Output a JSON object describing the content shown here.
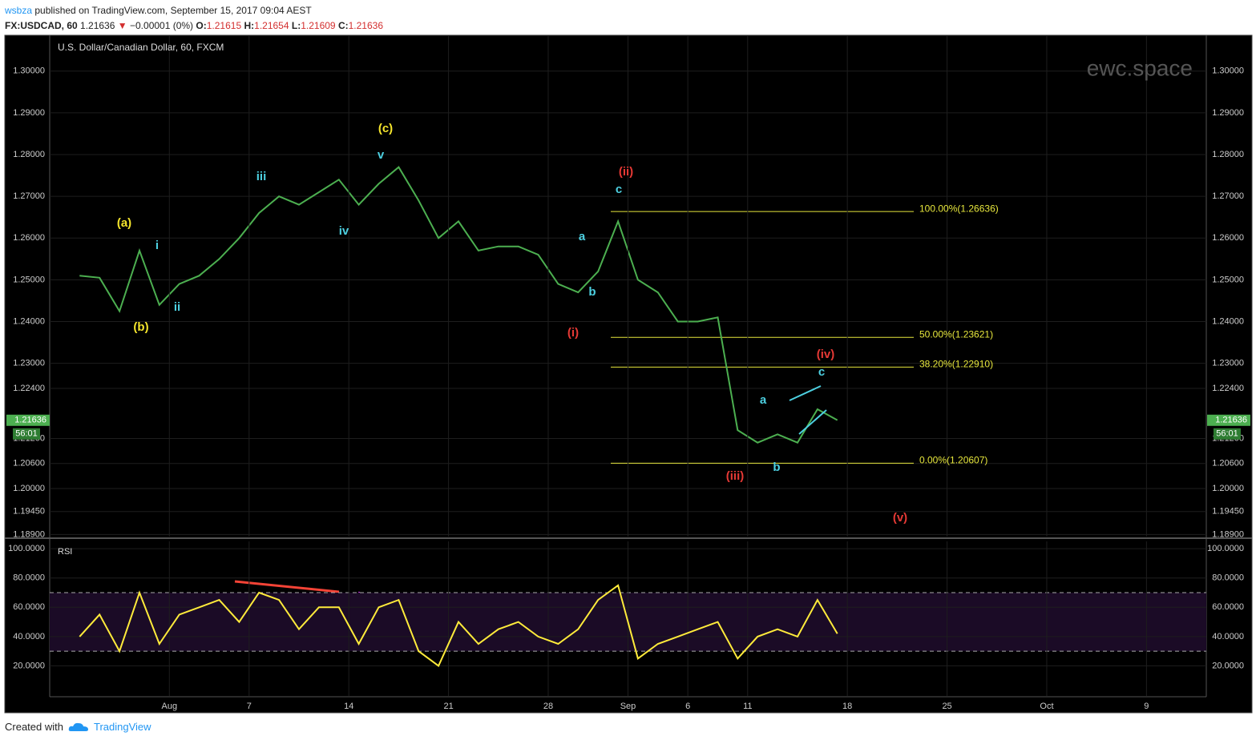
{
  "header": {
    "publisher": "wsbza",
    "published": "published on TradingView.com, September 15, 2017 09:04 AEST",
    "symbol": "FX:USDCAD, 60",
    "last": "1.21636",
    "change": "−0.00001 (0%)",
    "o_label": "O:",
    "o": "1.21615",
    "h_label": "H:",
    "h": "1.21654",
    "l_label": "L:",
    "l": "1.21609",
    "c_label": "C:",
    "c": "1.21636"
  },
  "chart_data": [
    {
      "type": "line",
      "title": "U.S. Dollar/Canadian Dollar, 60, FXCM",
      "watermark": "ewc.space",
      "color": "#4caf50",
      "grid": true,
      "x": [
        "07-25",
        "07-26",
        "07-27",
        "07-28",
        "07-31",
        "08-01",
        "08-02",
        "08-03",
        "08-04",
        "08-07",
        "08-08",
        "08-09",
        "08-10",
        "08-11",
        "08-14",
        "08-15",
        "08-16",
        "08-17",
        "08-18",
        "08-21",
        "08-22",
        "08-23",
        "08-24",
        "08-25",
        "08-28",
        "08-29",
        "08-30",
        "08-31",
        "09-01",
        "09-04",
        "09-05",
        "09-06",
        "09-07",
        "09-08",
        "09-11",
        "09-12",
        "09-13",
        "09-14",
        "09-15"
      ],
      "values": [
        1.251,
        1.2505,
        1.2425,
        1.257,
        1.244,
        1.249,
        1.251,
        1.255,
        1.26,
        1.266,
        1.27,
        1.268,
        1.271,
        1.274,
        1.268,
        1.273,
        1.277,
        1.269,
        1.26,
        1.264,
        1.257,
        1.258,
        1.258,
        1.256,
        1.249,
        1.247,
        1.252,
        1.264,
        1.25,
        1.247,
        1.24,
        1.24,
        1.241,
        1.214,
        1.211,
        1.213,
        1.211,
        1.219,
        1.2164
      ],
      "xlim": [
        "07-24",
        "10-12"
      ],
      "ylim": [
        1.1885,
        1.3084
      ],
      "yticks": [
        {
          "value": 1.3,
          "label": "1.30000"
        },
        {
          "value": 1.29,
          "label": "1.29000"
        },
        {
          "value": 1.28,
          "label": "1.28000"
        },
        {
          "value": 1.27,
          "label": "1.27000"
        },
        {
          "value": 1.26,
          "label": "1.26000"
        },
        {
          "value": 1.25,
          "label": "1.25000"
        },
        {
          "value": 1.24,
          "label": "1.24000"
        },
        {
          "value": 1.23,
          "label": "1.23000"
        },
        {
          "value": 1.224,
          "label": "1.22400"
        },
        {
          "value": 1.212,
          "label": "1.21200"
        },
        {
          "value": 1.206,
          "label": "1.20600"
        },
        {
          "value": 1.2,
          "label": "1.20000"
        },
        {
          "value": 1.1945,
          "label": "1.19450"
        },
        {
          "value": 1.189,
          "label": "1.18900"
        }
      ],
      "price_tag": {
        "value": 1.21636,
        "label": "1.21636"
      },
      "countdown": "56:01",
      "fib_color": "#e6e63c",
      "fib_levels": [
        {
          "value": 1.26636,
          "label": "100.00%(1.26636)"
        },
        {
          "value": 1.23621,
          "label": "50.00%(1.23621)"
        },
        {
          "value": 1.2291,
          "label": "38.20%(1.22910)"
        },
        {
          "value": 1.20607,
          "label": "0.00%(1.20607)"
        }
      ],
      "annotations": [
        {
          "text": "(c)",
          "color": "#f5e52c"
        },
        {
          "text": "v",
          "color": "#4dd0e1"
        },
        {
          "text": "iii",
          "color": "#4dd0e1"
        },
        {
          "text": "iv",
          "color": "#4dd0e1"
        },
        {
          "text": "(a)",
          "color": "#f5e52c"
        },
        {
          "text": "i",
          "color": "#4dd0e1"
        },
        {
          "text": "ii",
          "color": "#4dd0e1"
        },
        {
          "text": "(b)",
          "color": "#f5e52c"
        },
        {
          "text": "(ii)",
          "color": "#e53935"
        },
        {
          "text": "c",
          "color": "#4dd0e1"
        },
        {
          "text": "a",
          "color": "#4dd0e1"
        },
        {
          "text": "b",
          "color": "#4dd0e1"
        },
        {
          "text": "(i)",
          "color": "#e53935"
        },
        {
          "text": "(iv)",
          "color": "#e53935"
        },
        {
          "text": "c",
          "color": "#4dd0e1"
        },
        {
          "text": "a",
          "color": "#4dd0e1"
        },
        {
          "text": "b",
          "color": "#4dd0e1"
        },
        {
          "text": "(iii)",
          "color": "#e53935"
        },
        {
          "text": "(v)",
          "color": "#e53935"
        }
      ]
    },
    {
      "type": "line",
      "title": "RSI",
      "color": "#ffeb3b",
      "grid": true,
      "x": [
        "07-25",
        "07-26",
        "07-27",
        "07-28",
        "07-31",
        "08-01",
        "08-02",
        "08-03",
        "08-04",
        "08-07",
        "08-08",
        "08-09",
        "08-10",
        "08-11",
        "08-14",
        "08-15",
        "08-16",
        "08-17",
        "08-18",
        "08-21",
        "08-22",
        "08-23",
        "08-24",
        "08-25",
        "08-28",
        "08-29",
        "08-30",
        "08-31",
        "09-01",
        "09-04",
        "09-05",
        "09-06",
        "09-07",
        "09-08",
        "09-11",
        "09-12",
        "09-13",
        "09-14",
        "09-15"
      ],
      "values": [
        40,
        55,
        30,
        70,
        35,
        55,
        60,
        65,
        50,
        70,
        65,
        45,
        60,
        60,
        35,
        60,
        65,
        30,
        20,
        50,
        35,
        45,
        50,
        40,
        35,
        45,
        65,
        75,
        25,
        35,
        40,
        45,
        50,
        25,
        40,
        45,
        40,
        65,
        42
      ],
      "xlim": [
        "07-24",
        "10-12"
      ],
      "ylim": [
        0,
        105
      ],
      "band": [
        30,
        70
      ],
      "yticks": [
        {
          "value": 100,
          "label": "100.0000"
        },
        {
          "value": 80,
          "label": "80.0000"
        },
        {
          "value": 60,
          "label": "60.0000"
        },
        {
          "value": 40,
          "label": "40.0000"
        },
        {
          "value": 20,
          "label": "20.0000"
        }
      ],
      "xticks": [
        {
          "value": "08-01",
          "label": "Aug"
        },
        {
          "value": "08-07",
          "label": "7"
        },
        {
          "value": "08-14",
          "label": "14"
        },
        {
          "value": "08-21",
          "label": "21"
        },
        {
          "value": "08-28",
          "label": "28"
        },
        {
          "value": "09-01",
          "label": "Sep"
        },
        {
          "value": "09-06",
          "label": "6"
        },
        {
          "value": "09-11",
          "label": "11"
        },
        {
          "value": "09-18",
          "label": "18"
        },
        {
          "value": "09-25",
          "label": "25"
        },
        {
          "value": "10-02",
          "label": "Oct"
        },
        {
          "value": "10-09",
          "label": "9"
        }
      ]
    }
  ],
  "footer": {
    "created_with": "Created with",
    "brand": "TradingView"
  }
}
